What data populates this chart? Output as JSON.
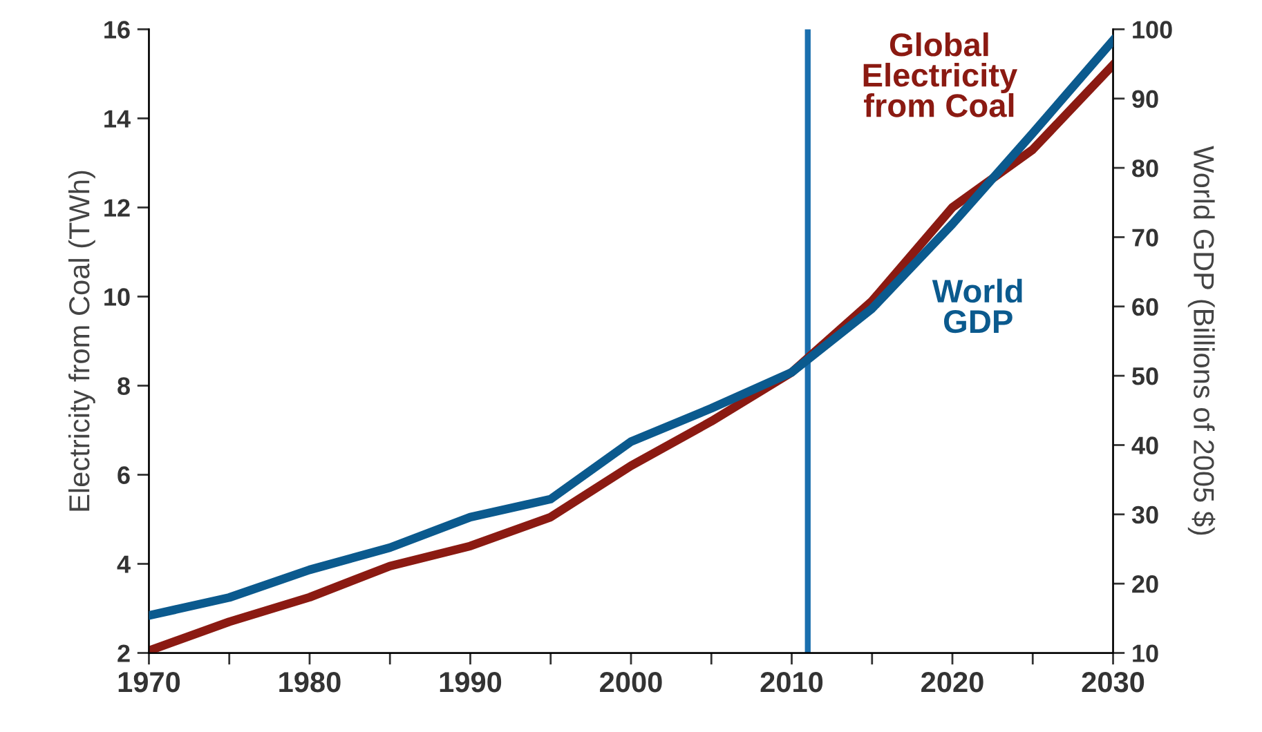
{
  "chart_data": {
    "type": "line",
    "x": [
      1970,
      1975,
      1980,
      1985,
      1990,
      1995,
      2000,
      2005,
      2010,
      2015,
      2020,
      2025,
      2030
    ],
    "series": [
      {
        "name": "Global\nElectricity\nfrom Coal",
        "color": "#8b1a12",
        "values": [
          2.05,
          2.7,
          3.25,
          3.95,
          4.4,
          5.05,
          6.2,
          7.2,
          8.3,
          9.9,
          12.0,
          13.3,
          15.2
        ]
      },
      {
        "name": "World\nGDP",
        "color": "#0b5a8e",
        "axis": "y2",
        "values": [
          15.4,
          18,
          22,
          25.2,
          29.6,
          32.2,
          40.5,
          45.3,
          50.5,
          59.7,
          71.9,
          85,
          98.4
        ]
      }
    ],
    "ylabel": "Electricity from Coal (TWh)",
    "y2label": "World GDP (Billions of 2005 $)",
    "xlim": [
      1970,
      2030
    ],
    "xticks": [
      1970,
      {
        "value": 1975,
        "label": null
      },
      1980,
      {
        "value": 1985,
        "label": null
      },
      1990,
      {
        "value": 1995,
        "label": null
      },
      2000,
      {
        "value": 2005,
        "label": null
      },
      2010,
      {
        "value": 2015,
        "label": null
      },
      2020,
      {
        "value": 2025,
        "label": null
      },
      2030
    ],
    "ylim": [
      2,
      16
    ],
    "yticks": [
      2,
      4,
      6,
      8,
      10,
      12,
      14,
      16
    ],
    "y2lim": [
      10,
      100
    ],
    "y2ticks": [
      10,
      20,
      30,
      40,
      50,
      60,
      70,
      80,
      90,
      100
    ],
    "ref_lines": [
      {
        "axis": "x",
        "value": 2011,
        "color": "#1a6fae"
      }
    ],
    "grid": false,
    "legend": false,
    "marker": "none",
    "line_style": "solid"
  }
}
